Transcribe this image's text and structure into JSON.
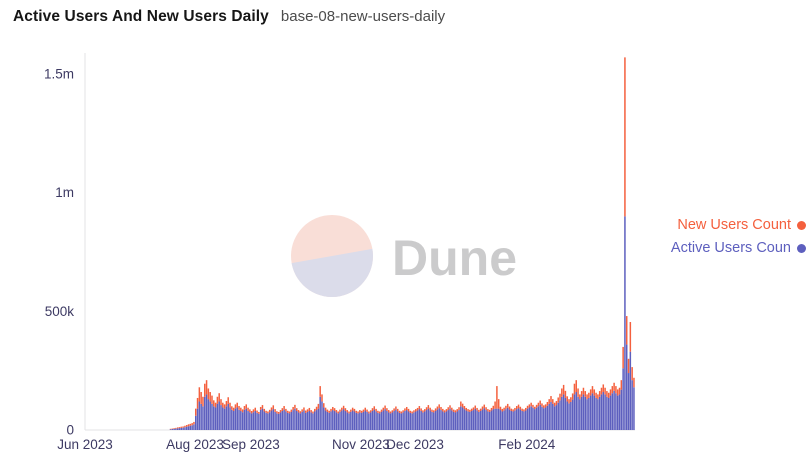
{
  "header": {
    "title": "Active Users And New Users Daily",
    "subtitle": "base-08-new-users-daily"
  },
  "watermark": {
    "brand": "Dune",
    "circle_top_color": "#F9DED7",
    "circle_bottom_color": "#DBDCEA",
    "text_color": "#CBCBCC"
  },
  "legend": {
    "items": [
      {
        "label": "New Users Count",
        "color": "#F4603E"
      },
      {
        "label": "Active Users Coun",
        "color": "#5D5FBE"
      }
    ]
  },
  "axis": {
    "label_color": "#3D3A63",
    "line_color": "#E3E3E6"
  },
  "chart_data": {
    "type": "bar",
    "stacked": true,
    "title": "Active Users And New Users Daily",
    "ylabel": "",
    "xlabel": "",
    "unit": "users (values stored in thousands)",
    "grid": false,
    "legend_position": "right",
    "ylim_k": [
      0,
      1580
    ],
    "y_ticks": [
      {
        "value_k": 0,
        "label": "0"
      },
      {
        "value_k": 500,
        "label": "500k"
      },
      {
        "value_k": 1000,
        "label": "1m"
      },
      {
        "value_k": 1500,
        "label": "1.5m"
      }
    ],
    "x_domain": {
      "start": "2023-06-01",
      "end": "2024-04-01",
      "days": 305,
      "data_start_offset_days": 47
    },
    "x_ticks": [
      {
        "day_offset": 0,
        "label": "Jun 2023"
      },
      {
        "day_offset": 61,
        "label": "Aug 2023"
      },
      {
        "day_offset": 92,
        "label": "Sep 2023"
      },
      {
        "day_offset": 153,
        "label": "Nov 2023"
      },
      {
        "day_offset": 183,
        "label": "Dec 2023"
      },
      {
        "day_offset": 245,
        "label": "Feb 2024"
      }
    ],
    "data_start_date": "2023-07-18",
    "series": [
      {
        "name": "Active Users Count",
        "color": "#5D5FBE",
        "values_k": [
          3,
          4,
          5,
          6,
          7,
          8,
          9,
          10,
          12,
          14,
          16,
          18,
          20,
          24,
          60,
          90,
          120,
          110,
          100,
          140,
          150,
          130,
          120,
          110,
          100,
          95,
          110,
          120,
          105,
          95,
          90,
          100,
          110,
          95,
          85,
          80,
          90,
          95,
          85,
          80,
          75,
          85,
          90,
          80,
          75,
          70,
          75,
          80,
          72,
          68,
          85,
          90,
          78,
          72,
          70,
          75,
          82,
          88,
          76,
          70,
          68,
          74,
          80,
          86,
          78,
          72,
          70,
          76,
          84,
          90,
          80,
          74,
          70,
          76,
          82,
          72,
          76,
          80,
          74,
          70,
          78,
          84,
          90,
          140,
          120,
          95,
          82,
          76,
          72,
          78,
          84,
          80,
          74,
          70,
          76,
          82,
          88,
          80,
          74,
          70,
          76,
          82,
          78,
          72,
          70,
          74,
          72,
          76,
          82,
          76,
          70,
          74,
          80,
          86,
          78,
          72,
          70,
          76,
          82,
          88,
          80,
          74,
          70,
          74,
          80,
          86,
          78,
          72,
          70,
          74,
          80,
          84,
          78,
          72,
          70,
          74,
          78,
          82,
          88,
          80,
          74,
          78,
          84,
          90,
          82,
          76,
          74,
          80,
          86,
          92,
          84,
          78,
          74,
          78,
          84,
          90,
          82,
          76,
          74,
          78,
          84,
          100,
          95,
          88,
          82,
          78,
          76,
          80,
          84,
          90,
          82,
          76,
          80,
          86,
          92,
          84,
          78,
          76,
          82,
          88,
          90,
          90,
          90,
          84,
          78,
          82,
          88,
          94,
          86,
          80,
          78,
          82,
          88,
          92,
          86,
          80,
          78,
          82,
          90,
          95,
          100,
          94,
          88,
          94,
          100,
          106,
          98,
          92,
          95,
          102,
          110,
          118,
          110,
          100,
          105,
          115,
          125,
          140,
          150,
          135,
          120,
          112,
          118,
          128,
          150,
          160,
          140,
          130,
          140,
          150,
          140,
          130,
          135,
          145,
          155,
          145,
          135,
          130,
          140,
          150,
          160,
          150,
          140,
          135,
          145,
          155,
          165,
          155,
          145,
          150,
          170,
          260,
          900,
          360,
          240,
          330,
          210,
          180
        ]
      },
      {
        "name": "New Users Count",
        "color": "#F4603E",
        "values_k": [
          2,
          2,
          3,
          3,
          4,
          4,
          5,
          5,
          6,
          7,
          8,
          8,
          9,
          10,
          30,
          45,
          60,
          50,
          40,
          55,
          60,
          45,
          40,
          35,
          25,
          20,
          30,
          35,
          25,
          20,
          18,
          22,
          28,
          20,
          15,
          14,
          18,
          20,
          16,
          14,
          12,
          16,
          18,
          14,
          12,
          10,
          12,
          14,
          10,
          8,
          12,
          15,
          11,
          9,
          8,
          10,
          13,
          16,
          12,
          9,
          8,
          10,
          12,
          15,
          11,
          9,
          8,
          10,
          13,
          16,
          12,
          10,
          9,
          11,
          13,
          10,
          11,
          13,
          10,
          8,
          11,
          14,
          20,
          45,
          30,
          18,
          12,
          10,
          9,
          11,
          13,
          12,
          10,
          8,
          10,
          12,
          14,
          12,
          10,
          8,
          10,
          12,
          11,
          9,
          8,
          10,
          9,
          10,
          12,
          10,
          8,
          9,
          12,
          14,
          11,
          9,
          8,
          10,
          12,
          15,
          12,
          10,
          8,
          9,
          11,
          13,
          11,
          9,
          8,
          9,
          11,
          13,
          11,
          9,
          8,
          9,
          10,
          11,
          13,
          11,
          9,
          10,
          12,
          15,
          12,
          10,
          9,
          11,
          13,
          16,
          13,
          11,
          9,
          10,
          12,
          14,
          12,
          10,
          9,
          10,
          12,
          20,
          16,
          13,
          11,
          10,
          9,
          10,
          11,
          13,
          11,
          9,
          10,
          13,
          15,
          12,
          10,
          9,
          11,
          14,
          30,
          95,
          40,
          14,
          11,
          12,
          14,
          16,
          13,
          10,
          9,
          11,
          13,
          15,
          12,
          10,
          9,
          11,
          12,
          13,
          15,
          12,
          10,
          12,
          15,
          18,
          14,
          12,
          13,
          16,
          20,
          25,
          20,
          15,
          17,
          22,
          28,
          35,
          40,
          30,
          22,
          18,
          20,
          26,
          45,
          50,
          35,
          20,
          24,
          28,
          24,
          20,
          22,
          26,
          30,
          26,
          22,
          20,
          24,
          28,
          32,
          28,
          24,
          22,
          26,
          30,
          34,
          30,
          26,
          28,
          40,
          90,
          670,
          120,
          60,
          125,
          55,
          40
        ]
      }
    ]
  }
}
